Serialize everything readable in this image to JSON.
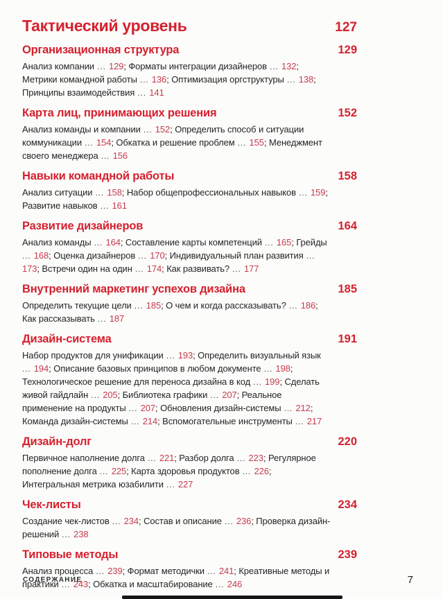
{
  "colors": {
    "heading_red": "#d5212e",
    "entry_number_red": "#c63b4c",
    "body_text": "#242424",
    "page_background": "#fcfcfb"
  },
  "separator": "...",
  "title": {
    "label": "Тактический уровень",
    "page": "127"
  },
  "sections": [
    {
      "heading": "Организационная структура",
      "page": "129",
      "items": [
        {
          "label": "Анализ компании",
          "page": "129"
        },
        {
          "label": "Форматы интеграции дизайнеров",
          "page": "132"
        },
        {
          "label": "Метрики командной работы",
          "page": "136"
        },
        {
          "label": "Оптимизация оргструктуры",
          "page": "138"
        },
        {
          "label": "Принципы взаимодействия",
          "page": "141"
        }
      ]
    },
    {
      "heading": "Карта лиц, принимающих решения",
      "page": "152",
      "items": [
        {
          "label": "Анализ команды и компании",
          "page": "152"
        },
        {
          "label": "Определить способ и ситуации коммуникации",
          "page": "154"
        },
        {
          "label": "Обкатка и решение проблем",
          "page": "155"
        },
        {
          "label": "Менеджмент своего менеджера",
          "page": "156"
        }
      ]
    },
    {
      "heading": "Навыки командной работы",
      "page": "158",
      "items": [
        {
          "label": "Анализ ситуации",
          "page": "158"
        },
        {
          "label": "Набор общепрофессиональных навыков",
          "page": "159"
        },
        {
          "label": "Развитие навыков",
          "page": "161"
        }
      ]
    },
    {
      "heading": "Развитие дизайнеров",
      "page": "164",
      "items": [
        {
          "label": "Анализ команды",
          "page": "164"
        },
        {
          "label": "Составление карты компетенций",
          "page": "165"
        },
        {
          "label": "Грейды",
          "page": "168"
        },
        {
          "label": "Оценка дизайнеров",
          "page": "170"
        },
        {
          "label": "Индивидуальный план развития",
          "page": "173"
        },
        {
          "label": "Встречи один на один",
          "page": "174"
        },
        {
          "label": "Как развивать?",
          "page": "177"
        }
      ]
    },
    {
      "heading": "Внутренний маркетинг успехов дизайна",
      "page": "185",
      "items": [
        {
          "label": "Определить текущие цели",
          "page": "185"
        },
        {
          "label": "О чем и когда рассказывать?",
          "page": "186"
        },
        {
          "label": "Как рассказывать",
          "page": "187"
        }
      ]
    },
    {
      "heading": "Дизайн-система",
      "page": "191",
      "items": [
        {
          "label": "Набор продуктов для унификации",
          "page": "193"
        },
        {
          "label": "Определить визуальный язык",
          "page": "194"
        },
        {
          "label": "Описание базовых принципов в любом документе",
          "page": "198"
        },
        {
          "label": "Технологическое решение для переноса дизайна в код",
          "page": "199"
        },
        {
          "label": "Сделать живой гайдлайн",
          "page": "205"
        },
        {
          "label": "Библиотека графики",
          "page": "207"
        },
        {
          "label": "Реальное применение на продукты",
          "page": "207"
        },
        {
          "label": "Обновления дизайн-системы",
          "page": "212"
        },
        {
          "label": "Команда дизайн-системы",
          "page": "214"
        },
        {
          "label": "Вспомогательные инструменты",
          "page": "217"
        }
      ]
    },
    {
      "heading": "Дизайн-долг",
      "page": "220",
      "items": [
        {
          "label": "Первичное наполнение долга",
          "page": "221"
        },
        {
          "label": "Разбор долга",
          "page": "223"
        },
        {
          "label": "Регулярное пополнение долга",
          "page": "225"
        },
        {
          "label": "Карта здоровья продуктов",
          "page": "226"
        },
        {
          "label": "Интегральная метрика юзабилити",
          "page": "227"
        }
      ]
    },
    {
      "heading": "Чек-листы",
      "page": "234",
      "items": [
        {
          "label": "Создание чек-листов",
          "page": "234"
        },
        {
          "label": "Состав и описание",
          "page": "236"
        },
        {
          "label": "Проверка дизайн-решений",
          "page": "238"
        }
      ]
    },
    {
      "heading": "Типовые методы",
      "page": "239",
      "items": [
        {
          "label": "Анализ процесса",
          "page": "239"
        },
        {
          "label": "Формат методички",
          "page": "241"
        },
        {
          "label": "Креативные методы и практики",
          "page": "243"
        },
        {
          "label": "Обкатка и масштабирование",
          "page": "246"
        }
      ]
    }
  ],
  "footer": {
    "section_label": "СОДЕРЖАНИЕ",
    "page_number": "7"
  }
}
